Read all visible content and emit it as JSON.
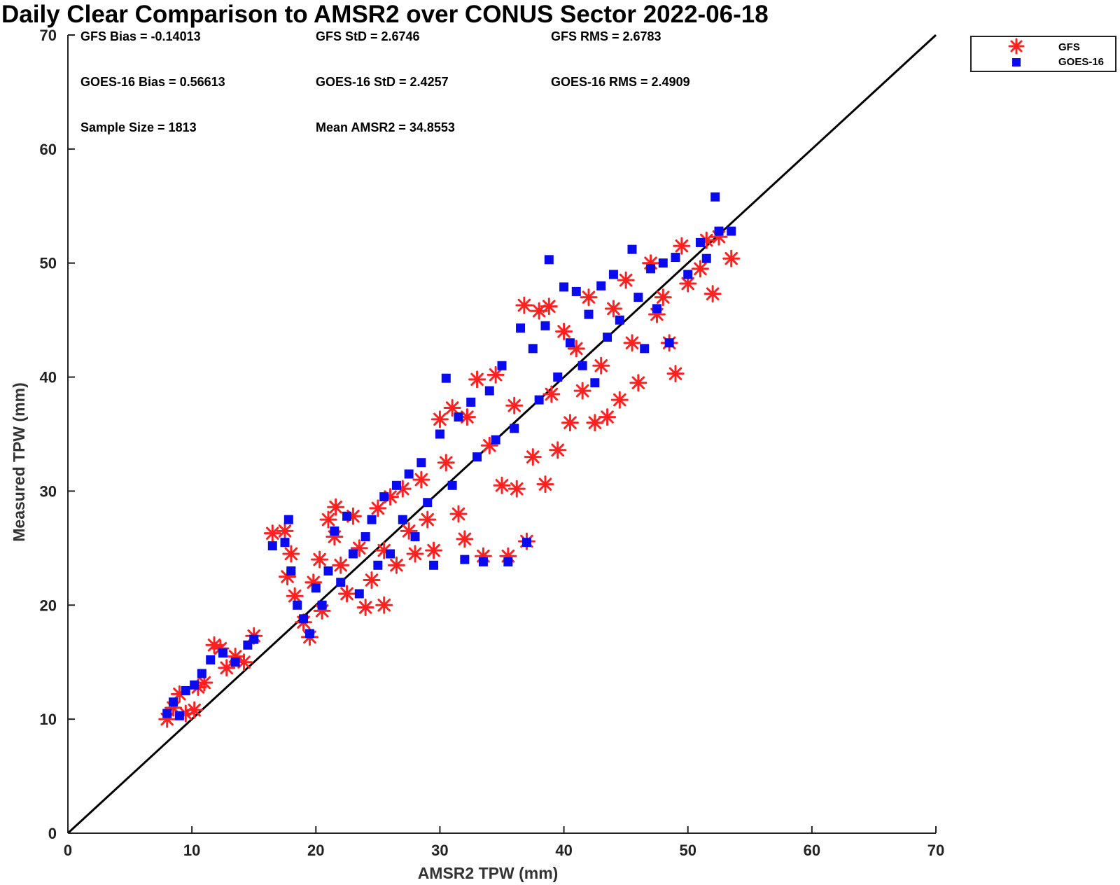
{
  "chart_data": {
    "type": "scatter",
    "title": "Daily Clear Comparison to AMSR2 over CONUS Sector 2022-06-18",
    "xlabel": "AMSR2 TPW (mm)",
    "ylabel": "Measured TPW (mm)",
    "xlim": [
      0,
      70
    ],
    "ylim": [
      0,
      70
    ],
    "xticks": [
      "0",
      "10",
      "20",
      "30",
      "40",
      "50",
      "60",
      "70"
    ],
    "yticks": [
      "0",
      "10",
      "20",
      "30",
      "40",
      "50",
      "60",
      "70"
    ],
    "grid": false,
    "legend_position": "outside top-right",
    "reference_line": {
      "type": "one-to-one",
      "from": [
        0,
        0
      ],
      "to": [
        70,
        70
      ],
      "color": "#000000"
    },
    "annotations": [
      "GFS Bias = -0.14013",
      "GFS StD = 2.6746",
      "GFS RMS = 2.6783",
      "GOES-16 Bias = 0.56613",
      "GOES-16 StD = 2.4257",
      "GOES-16 RMS = 2.4909",
      "Sample Size = 1813",
      "Mean AMSR2 = 34.8553"
    ],
    "series": [
      {
        "name": "GFS",
        "marker": "asterisk",
        "color": "#ff2020",
        "points": [
          [
            8.0,
            10.0
          ],
          [
            8.5,
            11.0
          ],
          [
            9.0,
            12.2
          ],
          [
            9.5,
            10.5
          ],
          [
            10.2,
            10.8
          ],
          [
            10.5,
            12.8
          ],
          [
            11.0,
            13.2
          ],
          [
            11.8,
            16.5
          ],
          [
            12.3,
            16.2
          ],
          [
            12.8,
            14.5
          ],
          [
            13.5,
            15.5
          ],
          [
            14.2,
            15.0
          ],
          [
            15.0,
            17.3
          ],
          [
            16.5,
            26.3
          ],
          [
            17.5,
            26.5
          ],
          [
            17.7,
            22.5
          ],
          [
            18.0,
            24.5
          ],
          [
            18.3,
            20.8
          ],
          [
            19.0,
            18.5
          ],
          [
            19.5,
            17.2
          ],
          [
            19.8,
            22.0
          ],
          [
            20.3,
            24.0
          ],
          [
            20.5,
            19.5
          ],
          [
            21.0,
            27.5
          ],
          [
            21.5,
            26.0
          ],
          [
            21.6,
            28.6
          ],
          [
            22.0,
            23.5
          ],
          [
            22.5,
            21.0
          ],
          [
            23.0,
            27.8
          ],
          [
            23.5,
            25.0
          ],
          [
            24.0,
            19.8
          ],
          [
            24.5,
            22.2
          ],
          [
            25.0,
            28.5
          ],
          [
            25.5,
            24.8
          ],
          [
            25.5,
            20.0
          ],
          [
            26.0,
            29.5
          ],
          [
            26.5,
            23.5
          ],
          [
            27.0,
            30.2
          ],
          [
            27.5,
            26.5
          ],
          [
            28.0,
            24.5
          ],
          [
            28.5,
            31.0
          ],
          [
            29.0,
            27.5
          ],
          [
            29.5,
            24.8
          ],
          [
            30.0,
            36.3
          ],
          [
            30.5,
            32.5
          ],
          [
            31.0,
            37.3
          ],
          [
            31.5,
            28.0
          ],
          [
            32.0,
            25.8
          ],
          [
            32.2,
            36.5
          ],
          [
            33.0,
            39.8
          ],
          [
            33.5,
            24.3
          ],
          [
            34.0,
            34.0
          ],
          [
            34.5,
            40.2
          ],
          [
            35.0,
            30.5
          ],
          [
            35.5,
            24.3
          ],
          [
            36.0,
            37.5
          ],
          [
            36.2,
            30.2
          ],
          [
            36.8,
            46.3
          ],
          [
            37.0,
            25.6
          ],
          [
            37.5,
            33.0
          ],
          [
            38.0,
            45.8
          ],
          [
            38.5,
            30.6
          ],
          [
            38.8,
            46.2
          ],
          [
            39.0,
            38.5
          ],
          [
            39.5,
            33.6
          ],
          [
            40.0,
            44.0
          ],
          [
            40.5,
            36.0
          ],
          [
            41.0,
            42.5
          ],
          [
            41.5,
            38.8
          ],
          [
            42.0,
            47.0
          ],
          [
            42.5,
            36.0
          ],
          [
            43.0,
            41.0
          ],
          [
            43.5,
            36.5
          ],
          [
            44.0,
            46.0
          ],
          [
            44.5,
            38.0
          ],
          [
            45.0,
            48.5
          ],
          [
            45.5,
            43.0
          ],
          [
            46.0,
            39.5
          ],
          [
            47.0,
            50.0
          ],
          [
            47.5,
            45.5
          ],
          [
            48.0,
            47.0
          ],
          [
            48.5,
            43.0
          ],
          [
            49.0,
            40.3
          ],
          [
            49.5,
            51.5
          ],
          [
            50.0,
            48.2
          ],
          [
            51.0,
            49.5
          ],
          [
            51.5,
            52.0
          ],
          [
            52.0,
            47.3
          ],
          [
            52.5,
            52.3
          ],
          [
            53.5,
            50.4
          ]
        ]
      },
      {
        "name": "GOES-16",
        "marker": "square",
        "color": "#0a0aee",
        "points": [
          [
            8.0,
            10.5
          ],
          [
            8.5,
            11.5
          ],
          [
            9.0,
            10.3
          ],
          [
            9.5,
            12.5
          ],
          [
            10.2,
            13.0
          ],
          [
            10.8,
            14.0
          ],
          [
            11.5,
            15.2
          ],
          [
            12.5,
            15.8
          ],
          [
            13.5,
            15.0
          ],
          [
            14.5,
            16.5
          ],
          [
            15.0,
            17.0
          ],
          [
            16.5,
            25.2
          ],
          [
            17.5,
            25.5
          ],
          [
            17.8,
            27.5
          ],
          [
            18.0,
            23.0
          ],
          [
            18.5,
            20.0
          ],
          [
            19.0,
            18.8
          ],
          [
            19.5,
            17.5
          ],
          [
            20.0,
            21.5
          ],
          [
            20.5,
            20.0
          ],
          [
            21.0,
            23.0
          ],
          [
            21.5,
            26.5
          ],
          [
            22.0,
            22.0
          ],
          [
            22.5,
            27.8
          ],
          [
            23.0,
            24.5
          ],
          [
            23.5,
            21.0
          ],
          [
            24.0,
            26.0
          ],
          [
            24.5,
            27.5
          ],
          [
            25.0,
            23.5
          ],
          [
            25.5,
            29.5
          ],
          [
            26.0,
            24.5
          ],
          [
            26.5,
            30.5
          ],
          [
            27.0,
            27.5
          ],
          [
            27.5,
            31.5
          ],
          [
            28.0,
            26.0
          ],
          [
            28.5,
            32.5
          ],
          [
            29.0,
            29.0
          ],
          [
            29.5,
            23.5
          ],
          [
            30.0,
            35.0
          ],
          [
            30.5,
            39.9
          ],
          [
            31.0,
            30.5
          ],
          [
            31.5,
            36.5
          ],
          [
            32.0,
            24.0
          ],
          [
            32.5,
            37.8
          ],
          [
            33.0,
            33.0
          ],
          [
            33.5,
            23.8
          ],
          [
            34.0,
            38.8
          ],
          [
            34.5,
            34.5
          ],
          [
            35.0,
            41.0
          ],
          [
            35.5,
            23.8
          ],
          [
            36.0,
            35.5
          ],
          [
            36.5,
            44.3
          ],
          [
            37.0,
            25.5
          ],
          [
            37.5,
            42.5
          ],
          [
            38.0,
            38.0
          ],
          [
            38.5,
            44.5
          ],
          [
            38.8,
            50.3
          ],
          [
            39.5,
            40.0
          ],
          [
            40.0,
            47.9
          ],
          [
            40.5,
            43.0
          ],
          [
            41.0,
            47.5
          ],
          [
            41.5,
            41.0
          ],
          [
            42.0,
            45.5
          ],
          [
            42.5,
            39.5
          ],
          [
            43.0,
            48.0
          ],
          [
            43.5,
            43.5
          ],
          [
            44.0,
            49.0
          ],
          [
            44.5,
            45.0
          ],
          [
            45.5,
            51.2
          ],
          [
            46.0,
            47.0
          ],
          [
            46.5,
            42.5
          ],
          [
            47.0,
            49.5
          ],
          [
            47.5,
            46.0
          ],
          [
            48.0,
            50.0
          ],
          [
            48.5,
            43.0
          ],
          [
            49.0,
            50.5
          ],
          [
            50.0,
            49.0
          ],
          [
            51.0,
            51.8
          ],
          [
            51.5,
            50.4
          ],
          [
            52.2,
            55.8
          ],
          [
            52.5,
            52.8
          ],
          [
            53.5,
            52.8
          ]
        ]
      }
    ]
  }
}
